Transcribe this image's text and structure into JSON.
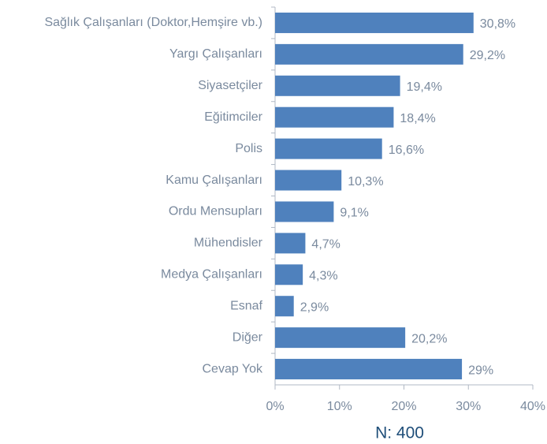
{
  "chart_data": {
    "type": "bar",
    "orientation": "horizontal",
    "categories": [
      "Sağlık Çalışanları (Doktor,Hemşire vb.)",
      "Yargı Çalışanları",
      "Siyasetçiler",
      "Eğitimciler",
      "Polis",
      "Kamu Çalışanları",
      "Ordu Mensupları",
      "Mühendisler",
      "Medya Çalışanları",
      "Esnaf",
      "Diğer",
      "Cevap Yok"
    ],
    "values": [
      30.8,
      29.2,
      19.4,
      18.4,
      16.6,
      10.3,
      9.1,
      4.7,
      4.3,
      2.9,
      20.2,
      29
    ],
    "value_labels": [
      "30,8%",
      "29,2%",
      "19,4%",
      "18,4%",
      "16,6%",
      "10,3%",
      "9,1%",
      "4,7%",
      "4,3%",
      "2,9%",
      "20,2%",
      "29%"
    ],
    "color": "#4f81bd",
    "xlim": [
      0,
      40
    ],
    "xticks": [
      {
        "value": 0,
        "label": "0%"
      },
      {
        "value": 10,
        "label": "10%"
      },
      {
        "value": 20,
        "label": "20%"
      },
      {
        "value": 30,
        "label": "30%"
      },
      {
        "value": 40,
        "label": "40%"
      }
    ],
    "grid": false,
    "annotation": "N: 400"
  }
}
